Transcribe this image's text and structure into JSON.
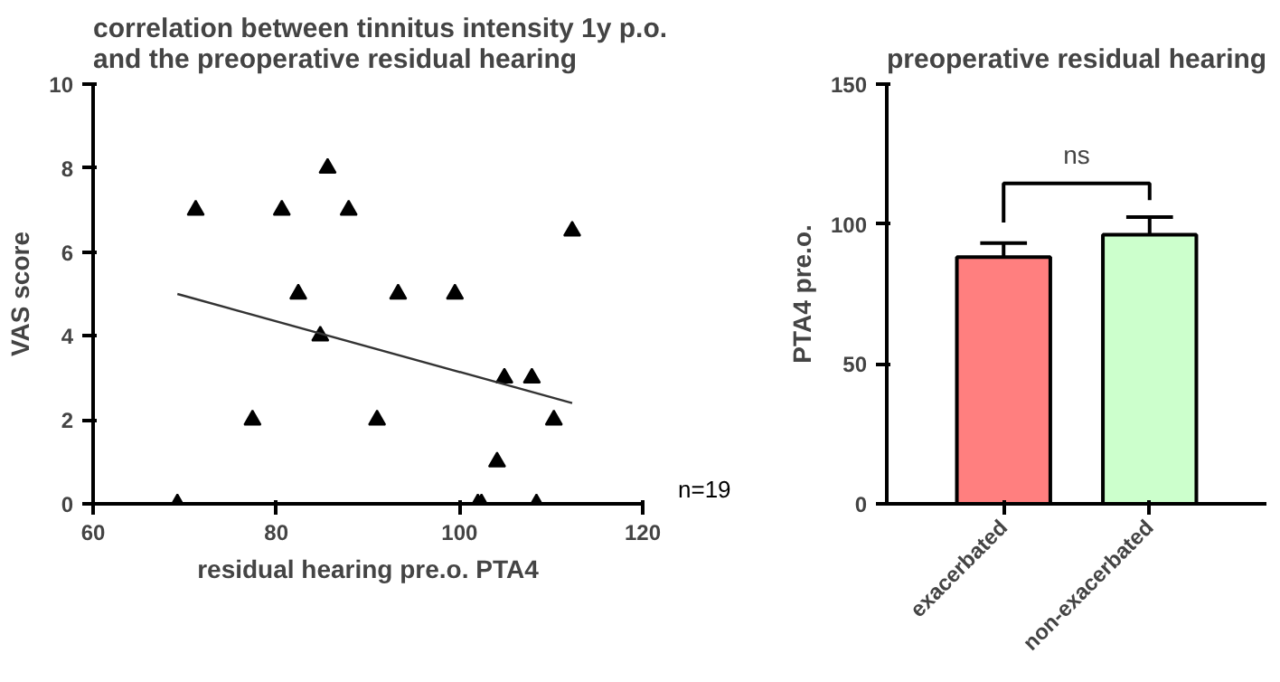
{
  "chart_data": [
    {
      "type": "scatter",
      "title": "correlation between tinnitus intensity 1y p.o.\nand the preoperative residual hearing",
      "xlabel": "residual hearing pre.o. PTA4",
      "ylabel": "VAS score",
      "xlim": [
        60,
        120
      ],
      "ylim": [
        0,
        10
      ],
      "xticks": [
        60,
        80,
        100,
        120
      ],
      "yticks": [
        0,
        2,
        4,
        6,
        8,
        10
      ],
      "grid": false,
      "marker": "triangle",
      "annotations": [
        "n=19"
      ],
      "series": [
        {
          "color": "#000000",
          "x": [
            69.2,
            71.2,
            77.4,
            80.6,
            82.4,
            84.8,
            85.6,
            87.9,
            91.0,
            93.3,
            99.5,
            102.0,
            102.4,
            104.1,
            104.9,
            107.9,
            108.4,
            110.3,
            112.3
          ],
          "values": [
            0,
            7,
            2,
            7,
            5,
            4,
            8,
            7,
            2,
            5,
            5,
            0,
            0,
            1,
            3,
            3,
            0,
            2,
            6.5
          ]
        },
        {
          "type": "line",
          "marker": "none",
          "color": "#333333",
          "x": [
            69.2,
            112.3
          ],
          "values": [
            5.0,
            2.4
          ]
        }
      ]
    },
    {
      "type": "bar",
      "title": "preoperative residual hearing",
      "ylabel": "PTA4 pre.o.",
      "categories": [
        "exacerbated",
        "non-exacerbated"
      ],
      "values": [
        88.2,
        96.2
      ],
      "errors": [
        5.0,
        6.3
      ],
      "colors": [
        "#ff7f7f",
        "#ccffcc"
      ],
      "ylim": [
        0,
        150
      ],
      "yticks": [
        0,
        50,
        100,
        150
      ],
      "grid": false,
      "annotations": [
        "ns"
      ]
    }
  ]
}
